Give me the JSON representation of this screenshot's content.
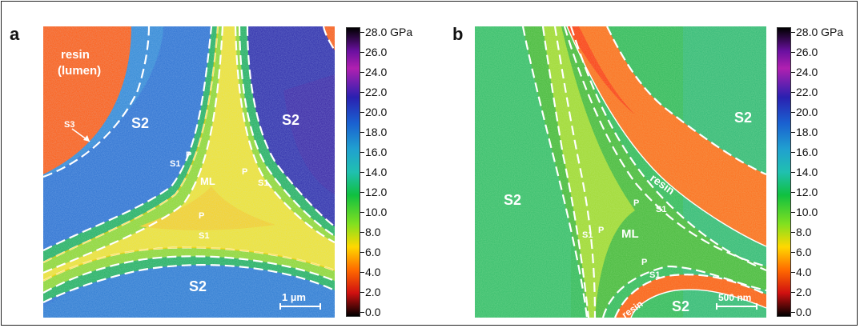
{
  "panels": [
    {
      "letter": "a",
      "labels": {
        "resin": "resin",
        "lumen": "(lumen)",
        "s3": "S3",
        "s2_left": "S2",
        "s2_right": "S2",
        "s2_bottom": "S2",
        "ml": "ML",
        "s1_left": "S1",
        "s1_right": "S1",
        "s1_bottom": "S1",
        "p_left": "P",
        "p_right": "P",
        "p_bottom": "P"
      },
      "scale_bar": "1 µm"
    },
    {
      "letter": "b",
      "labels": {
        "s2_left": "S2",
        "s2_right": "S2",
        "s2_bottom": "S2",
        "resin_top": "resin",
        "resin_bottom": "resin",
        "ml": "ML",
        "s1_left": "S1",
        "s1_right": "S1",
        "s1_bottom": "S1",
        "p_top": "P",
        "p_left": "P",
        "p_bottom": "P"
      },
      "scale_bar": "500 nm"
    }
  ],
  "colorbar": {
    "ticks": [
      "28.0 GPa",
      "26.0",
      "24.0",
      "22.0",
      "20.0",
      "18.0",
      "16.0",
      "14.0",
      "12.0",
      "10.0",
      "8.0",
      "6.0",
      "4.0",
      "2.0",
      "0.0"
    ],
    "colors": [
      "#000000",
      "#d01010",
      "#ff6a00",
      "#ffd800",
      "#80e020",
      "#10c040",
      "#20c0b0",
      "#1080d8",
      "#1a20b0",
      "#6a10a0",
      "#b020b0",
      "#000000"
    ]
  }
}
